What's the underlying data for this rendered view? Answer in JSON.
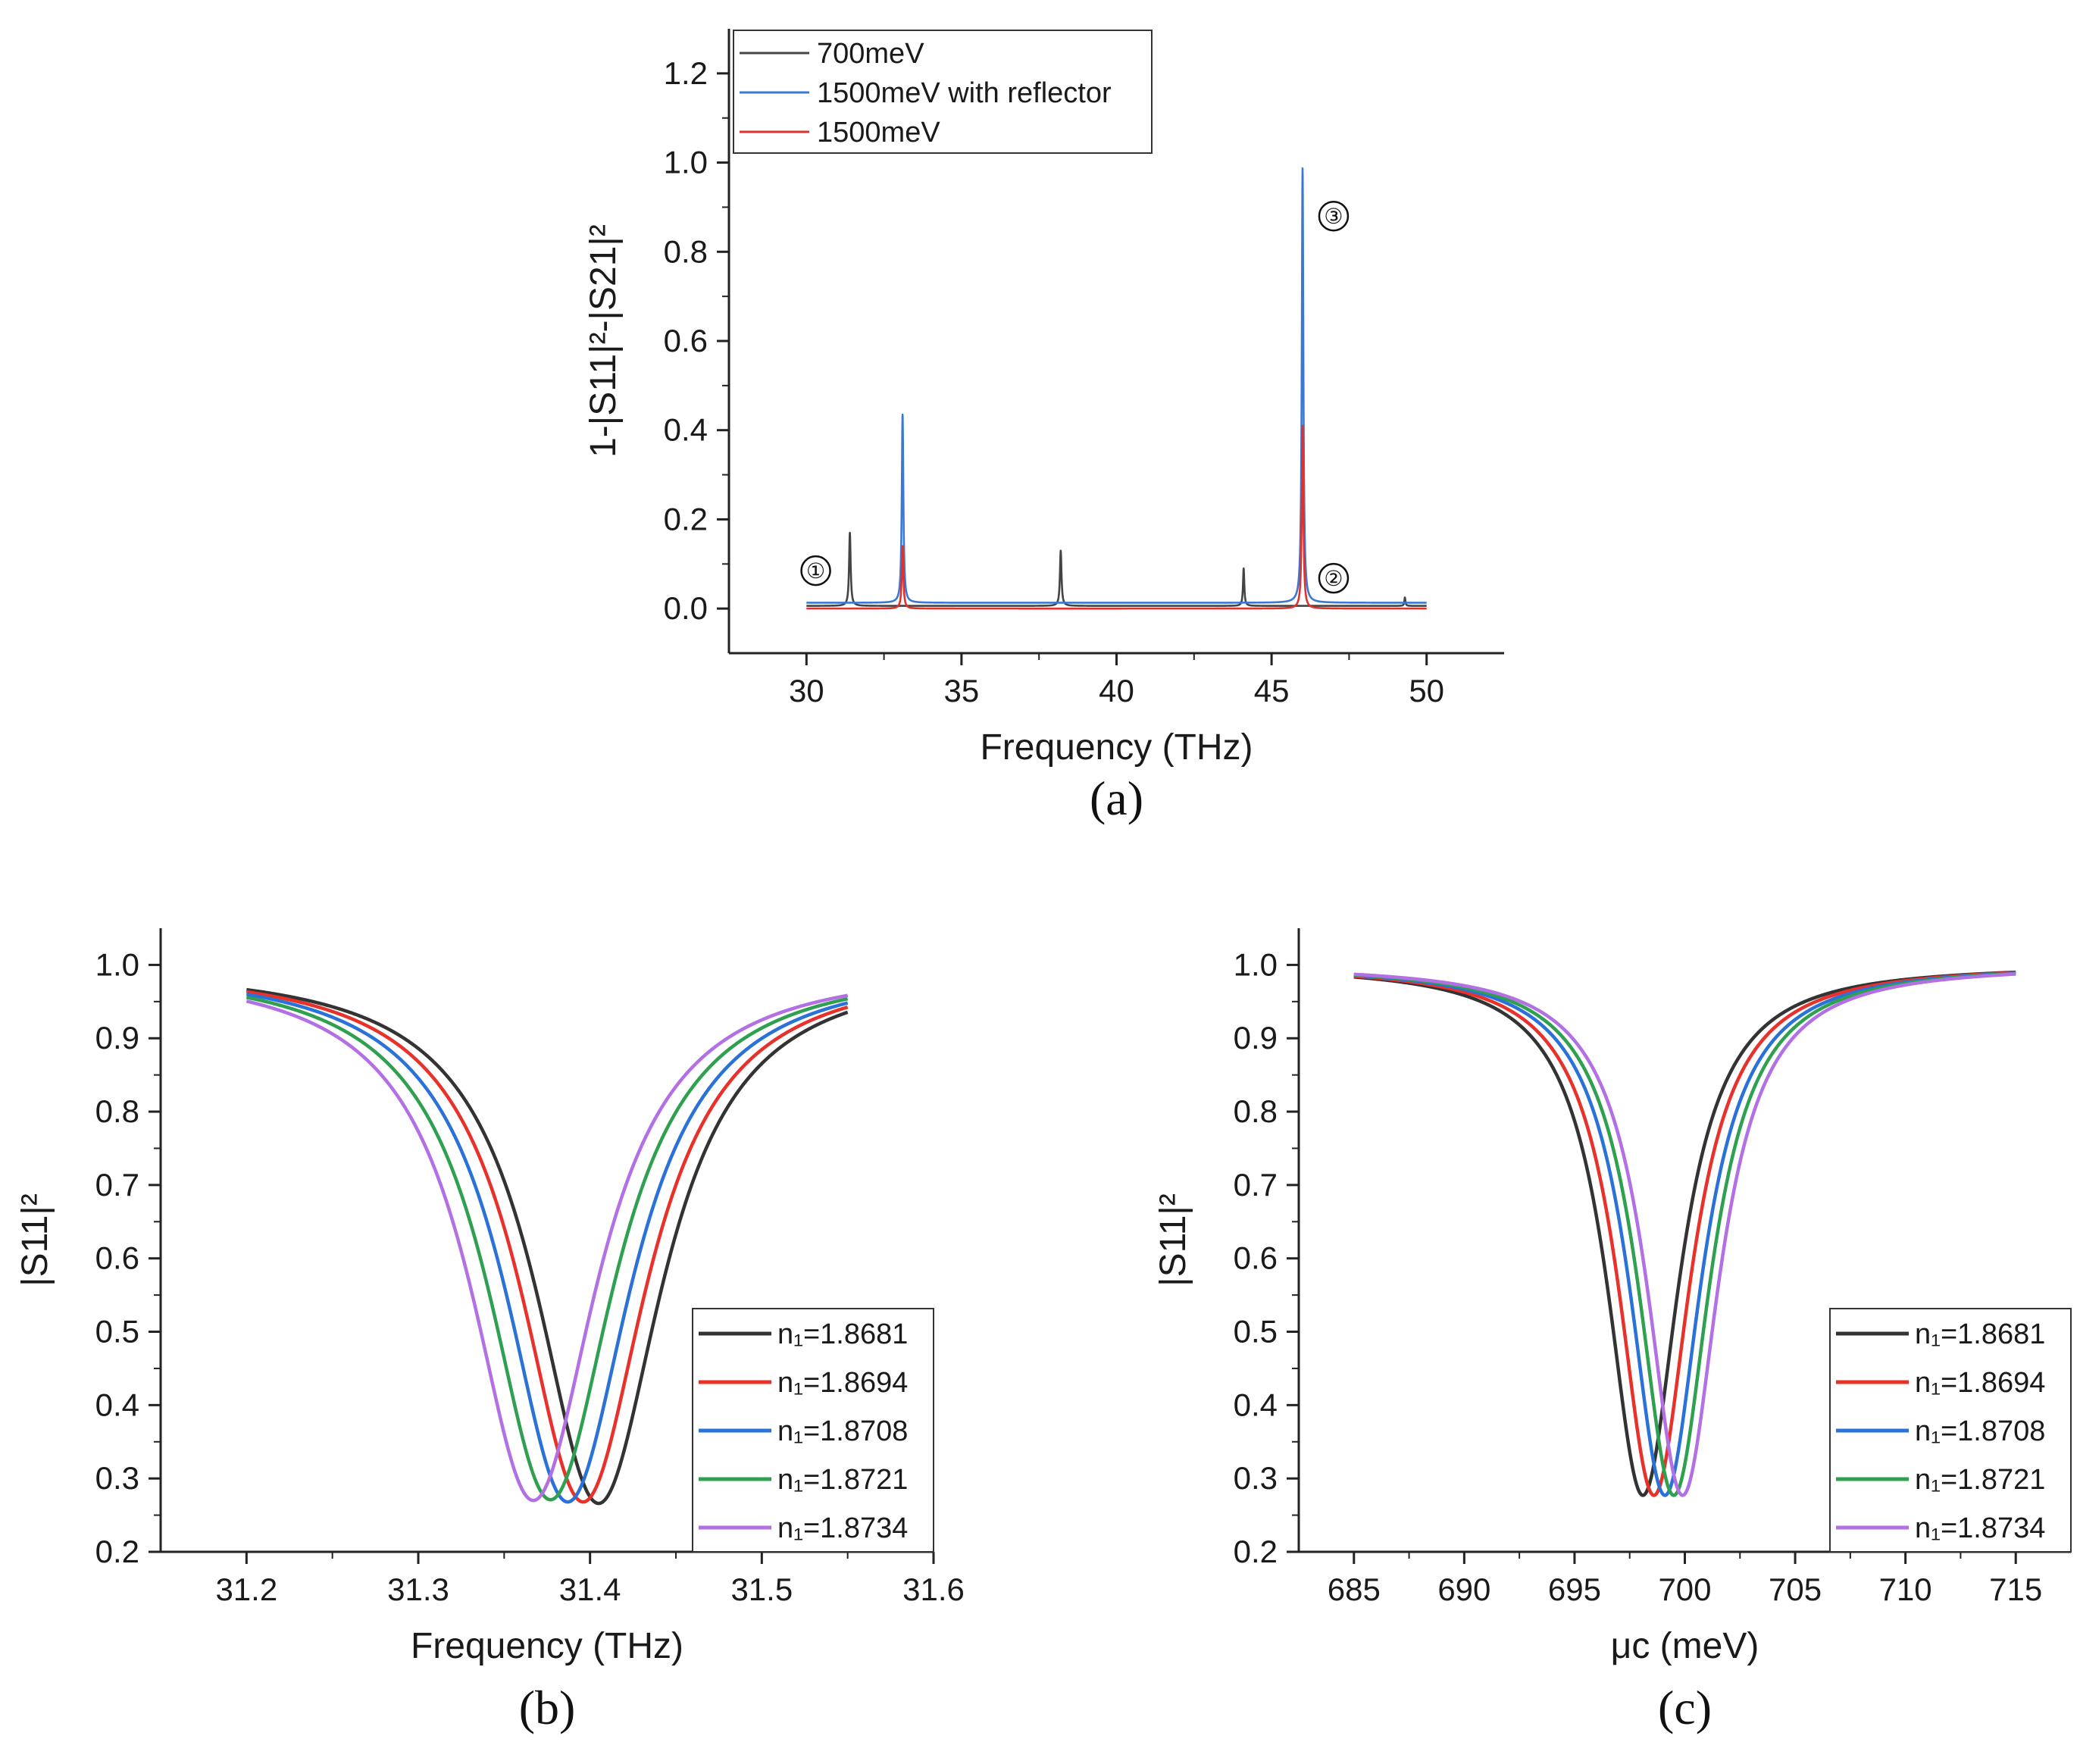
{
  "chart_data": [
    {
      "panel": "a",
      "type": "line",
      "caption": "(a)",
      "xlabel": "Frequency (THz)",
      "ylabel": "1-|S11|²-|S21|²",
      "xlim": [
        27.5,
        52.5
      ],
      "ylim": [
        -0.1,
        1.3
      ],
      "xticks": [
        30,
        35,
        40,
        45,
        50
      ],
      "yticks": [
        0.0,
        0.2,
        0.4,
        0.6,
        0.8,
        1.0,
        1.2
      ],
      "legend_position": "top-left",
      "series": [
        {
          "name": "700meV",
          "color": "#444444",
          "baseline": 0.006,
          "peaks": [
            [
              31.4,
              0.17,
              0.03
            ],
            [
              38.2,
              0.13,
              0.03
            ],
            [
              44.1,
              0.09,
              0.025
            ],
            [
              49.3,
              0.025,
              0.02
            ]
          ]
        },
        {
          "name": "1500meV with reflector",
          "color": "#3a78d4",
          "baseline": 0.013,
          "peaks": [
            [
              33.1,
              0.435,
              0.03
            ],
            [
              46.0,
              0.987,
              0.03
            ]
          ]
        },
        {
          "name": "1500meV",
          "color": "#e0312b",
          "baseline": 0.0,
          "peaks": [
            [
              33.1,
              0.14,
              0.03
            ],
            [
              46.0,
              0.41,
              0.03
            ]
          ]
        }
      ],
      "annotations": [
        {
          "label": "①",
          "x": 30.3,
          "y": 0.085
        },
        {
          "label": "②",
          "x": 47.0,
          "y": 0.068
        },
        {
          "label": "③",
          "x": 47.0,
          "y": 0.88
        }
      ]
    },
    {
      "panel": "b",
      "type": "line",
      "caption": "(b)",
      "xlabel": "Frequency (THz)",
      "ylabel": "|S11|²",
      "xlim": [
        31.15,
        31.6
      ],
      "ylim": [
        0.2,
        1.05
      ],
      "xticks": [
        31.2,
        31.3,
        31.4,
        31.5,
        31.6
      ],
      "yticks": [
        0.2,
        0.3,
        0.4,
        0.5,
        0.6,
        0.7,
        0.8,
        0.9,
        1.0
      ],
      "xrange": [
        31.2,
        31.55
      ],
      "legend_position": "bottom-right",
      "series": [
        {
          "name": "n₁=1.8681",
          "color": "#333333",
          "center": 31.405,
          "min": 0.266,
          "hw": 0.045
        },
        {
          "name": "n₁=1.8694",
          "color": "#e8312a",
          "center": 31.396,
          "min": 0.268,
          "hw": 0.045
        },
        {
          "name": "n₁=1.8708",
          "color": "#2a72d8",
          "center": 31.387,
          "min": 0.268,
          "hw": 0.045
        },
        {
          "name": "n₁=1.8721",
          "color": "#2ea04f",
          "center": 31.377,
          "min": 0.271,
          "hw": 0.045
        },
        {
          "name": "n₁=1.8734",
          "color": "#b270e4",
          "center": 31.367,
          "min": 0.27,
          "hw": 0.045
        }
      ]
    },
    {
      "panel": "c",
      "type": "line",
      "caption": "(c)",
      "xlabel": "μc (meV)",
      "ylabel": "|S11|²",
      "xlim": [
        682.5,
        717.5
      ],
      "ylim": [
        0.2,
        1.05
      ],
      "xticks": [
        685,
        690,
        695,
        700,
        705,
        710,
        715
      ],
      "yticks": [
        0.2,
        0.3,
        0.4,
        0.5,
        0.6,
        0.7,
        0.8,
        0.9,
        1.0
      ],
      "xrange": [
        685,
        715
      ],
      "legend_position": "bottom-right",
      "series": [
        {
          "name": "n₁=1.8681",
          "color": "#333333",
          "center": 698.1,
          "min": 0.277,
          "hw": 2.0
        },
        {
          "name": "n₁=1.8694",
          "color": "#e8312a",
          "center": 698.6,
          "min": 0.277,
          "hw": 2.0
        },
        {
          "name": "n₁=1.8708",
          "color": "#2a72d8",
          "center": 699.1,
          "min": 0.277,
          "hw": 2.0
        },
        {
          "name": "n₁=1.8721",
          "color": "#2ea04f",
          "center": 699.5,
          "min": 0.277,
          "hw": 2.0
        },
        {
          "name": "n₁=1.8734",
          "color": "#b270e4",
          "center": 699.9,
          "min": 0.277,
          "hw": 2.0
        }
      ]
    }
  ]
}
